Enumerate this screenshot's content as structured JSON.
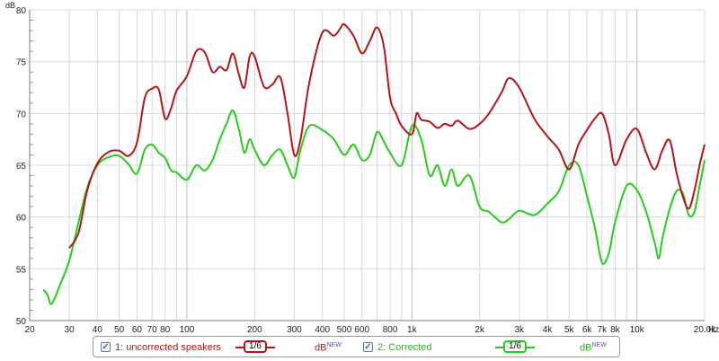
{
  "axis": {
    "unit_y": "dB",
    "unit_x": "Hz",
    "y_ticks": [
      "80",
      "75",
      "70",
      "65",
      "60",
      "55",
      "50"
    ],
    "x_ticks": [
      "20",
      "30",
      "40",
      "50",
      "60",
      "70",
      "80",
      "100",
      "200",
      "300",
      "400",
      "500",
      "600",
      "800",
      "1k",
      "2k",
      "3k",
      "4k",
      "5k",
      "6k",
      "7k",
      "8k",
      "10k",
      "20.0k"
    ]
  },
  "colors": {
    "background": "#ffffff",
    "grid": "#d8d8d8",
    "axis": "#7a7a7a",
    "uncorrected": "#b3161a",
    "corrected": "#27cc1b"
  },
  "legend": {
    "series1": {
      "checked": true,
      "label": "1: uncorrected speakers",
      "smoothing": "1/6",
      "unit": "dB",
      "unit_badge": "NEW"
    },
    "series2": {
      "checked": true,
      "label": "2: Corrected",
      "smoothing": "1/6",
      "unit": "dB",
      "unit_badge": "NEW"
    }
  },
  "chart_data": {
    "type": "line",
    "x_scale": "log",
    "xlim": [
      20,
      20000
    ],
    "ylim": [
      50,
      80
    ],
    "ylabel": "dB",
    "xlabel": "Hz",
    "series": [
      {
        "name": "1: uncorrected speakers",
        "points": [
          [
            30,
            57
          ],
          [
            33,
            58.5
          ],
          [
            36,
            62.5
          ],
          [
            40,
            65.2
          ],
          [
            45,
            66.3
          ],
          [
            50,
            66.4
          ],
          [
            55,
            65.9
          ],
          [
            60,
            67.2
          ],
          [
            65,
            71.5
          ],
          [
            70,
            72.4
          ],
          [
            75,
            72.3
          ],
          [
            80,
            69.5
          ],
          [
            85,
            70.5
          ],
          [
            90,
            72.2
          ],
          [
            100,
            73.6
          ],
          [
            110,
            76
          ],
          [
            120,
            75.9
          ],
          [
            130,
            74
          ],
          [
            140,
            74.5
          ],
          [
            150,
            74.2
          ],
          [
            160,
            75.8
          ],
          [
            170,
            73.8
          ],
          [
            180,
            72.5
          ],
          [
            190,
            75.5
          ],
          [
            200,
            75.5
          ],
          [
            220,
            72.6
          ],
          [
            240,
            72.8
          ],
          [
            260,
            73.5
          ],
          [
            280,
            70
          ],
          [
            300,
            66
          ],
          [
            320,
            67.5
          ],
          [
            350,
            73
          ],
          [
            400,
            77.8
          ],
          [
            450,
            77.5
          ],
          [
            480,
            78.2
          ],
          [
            500,
            78.6
          ],
          [
            550,
            77.5
          ],
          [
            600,
            75.8
          ],
          [
            650,
            77
          ],
          [
            700,
            78.3
          ],
          [
            750,
            76.5
          ],
          [
            800,
            71.5
          ],
          [
            850,
            70
          ],
          [
            900,
            68.8
          ],
          [
            1000,
            68
          ],
          [
            1050,
            70
          ],
          [
            1100,
            69.4
          ],
          [
            1200,
            69.2
          ],
          [
            1300,
            68.6
          ],
          [
            1400,
            69
          ],
          [
            1500,
            68.8
          ],
          [
            1600,
            69.3
          ],
          [
            1800,
            68.5
          ],
          [
            2000,
            69
          ],
          [
            2200,
            70
          ],
          [
            2500,
            72
          ],
          [
            2700,
            73.4
          ],
          [
            3000,
            72.5
          ],
          [
            3500,
            69.5
          ],
          [
            4000,
            67.8
          ],
          [
            4500,
            66.5
          ],
          [
            5000,
            64.6
          ],
          [
            5500,
            67
          ],
          [
            6000,
            68.4
          ],
          [
            6500,
            69.5
          ],
          [
            7000,
            70
          ],
          [
            7500,
            68
          ],
          [
            8000,
            65
          ],
          [
            9000,
            67.5
          ],
          [
            10000,
            68.5
          ],
          [
            11000,
            66.2
          ],
          [
            12000,
            64.6
          ],
          [
            13000,
            66.5
          ],
          [
            14000,
            67.4
          ],
          [
            15000,
            64.3
          ],
          [
            16000,
            62
          ],
          [
            17000,
            60.8
          ],
          [
            18000,
            62.5
          ],
          [
            19000,
            65
          ],
          [
            20000,
            67
          ]
        ]
      },
      {
        "name": "2: Corrected",
        "points": [
          [
            23,
            53
          ],
          [
            24,
            52.5
          ],
          [
            25,
            51.6
          ],
          [
            27,
            53.2
          ],
          [
            30,
            55.8
          ],
          [
            33,
            59.5
          ],
          [
            36,
            62.8
          ],
          [
            40,
            65
          ],
          [
            45,
            65.8
          ],
          [
            50,
            65.9
          ],
          [
            55,
            65.1
          ],
          [
            60,
            64.2
          ],
          [
            65,
            66.5
          ],
          [
            70,
            67
          ],
          [
            75,
            66.2
          ],
          [
            80,
            65.7
          ],
          [
            85,
            64.5
          ],
          [
            90,
            64.3
          ],
          [
            100,
            63.6
          ],
          [
            110,
            65
          ],
          [
            120,
            64.5
          ],
          [
            130,
            65.5
          ],
          [
            140,
            67.5
          ],
          [
            150,
            69
          ],
          [
            160,
            70.3
          ],
          [
            170,
            68.5
          ],
          [
            180,
            66.2
          ],
          [
            190,
            67.5
          ],
          [
            200,
            66.5
          ],
          [
            220,
            65
          ],
          [
            240,
            66
          ],
          [
            260,
            66.5
          ],
          [
            280,
            65
          ],
          [
            300,
            63.8
          ],
          [
            320,
            66.5
          ],
          [
            350,
            68.8
          ],
          [
            400,
            68.4
          ],
          [
            450,
            67.5
          ],
          [
            500,
            66
          ],
          [
            550,
            67
          ],
          [
            600,
            65.5
          ],
          [
            650,
            66
          ],
          [
            700,
            68.2
          ],
          [
            750,
            67.3
          ],
          [
            800,
            66.2
          ],
          [
            900,
            65
          ],
          [
            1000,
            68.8
          ],
          [
            1100,
            67.5
          ],
          [
            1200,
            64
          ],
          [
            1300,
            65
          ],
          [
            1400,
            63
          ],
          [
            1500,
            64.6
          ],
          [
            1600,
            63
          ],
          [
            1800,
            64
          ],
          [
            2000,
            61
          ],
          [
            2200,
            60.5
          ],
          [
            2500,
            59.5
          ],
          [
            2700,
            59.8
          ],
          [
            3000,
            60.6
          ],
          [
            3500,
            60.2
          ],
          [
            4000,
            61.3
          ],
          [
            4500,
            62.5
          ],
          [
            5000,
            65
          ],
          [
            5500,
            65
          ],
          [
            6000,
            62
          ],
          [
            6500,
            59
          ],
          [
            7000,
            55.6
          ],
          [
            7500,
            56.5
          ],
          [
            8000,
            59.5
          ],
          [
            9000,
            63
          ],
          [
            10000,
            62.6
          ],
          [
            11000,
            60.5
          ],
          [
            12000,
            57.5
          ],
          [
            12500,
            56
          ],
          [
            13000,
            58
          ],
          [
            14000,
            60.8
          ],
          [
            15000,
            62.5
          ],
          [
            16000,
            62.3
          ],
          [
            17000,
            60.2
          ],
          [
            18000,
            60.5
          ],
          [
            19000,
            63
          ],
          [
            20000,
            65.5
          ]
        ]
      }
    ]
  }
}
